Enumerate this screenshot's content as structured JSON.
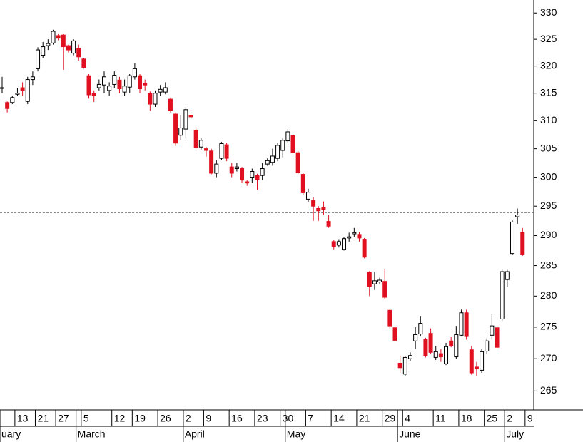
{
  "chart_data": {
    "type": "candlestick",
    "up_color": "#ffffff",
    "down_color": "#e01020",
    "log_scale": true,
    "ylim": [
      262.1,
      332.5
    ],
    "yticks": [
      265,
      270,
      275,
      280,
      285,
      290,
      295,
      300,
      305,
      310,
      315,
      320,
      325,
      330
    ],
    "xlim": [
      -0.42,
      104.2
    ],
    "reference_line": 293.9,
    "xticks": [
      {
        "value": 3,
        "label": "13"
      },
      {
        "value": 7,
        "label": "21"
      },
      {
        "value": 11,
        "label": "27"
      },
      {
        "value": 16,
        "label": "5"
      },
      {
        "value": 22,
        "label": "12"
      },
      {
        "value": 26,
        "label": "19"
      },
      {
        "value": 31,
        "label": "26"
      },
      {
        "value": 36,
        "label": "2"
      },
      {
        "value": 40,
        "label": "9"
      },
      {
        "value": 45,
        "label": "16"
      },
      {
        "value": 50,
        "label": "23"
      },
      {
        "value": 55,
        "label": "30"
      },
      {
        "value": 60,
        "label": "7"
      },
      {
        "value": 65,
        "label": "14"
      },
      {
        "value": 70,
        "label": "21"
      },
      {
        "value": 75,
        "label": "29"
      },
      {
        "value": 79,
        "label": "4"
      },
      {
        "value": 85,
        "label": "11"
      },
      {
        "value": 90,
        "label": "18"
      },
      {
        "value": 95,
        "label": "25"
      },
      {
        "value": 99,
        "label": "2"
      },
      {
        "value": 103,
        "label": "9"
      }
    ],
    "months": [
      {
        "value": 0,
        "label": "uary"
      },
      {
        "value": 15,
        "label": "March"
      },
      {
        "value": 36,
        "label": "April"
      },
      {
        "value": 56,
        "label": "May"
      },
      {
        "value": 78,
        "label": "June"
      },
      {
        "value": 99,
        "label": "July"
      }
    ],
    "open": [
      316,
      313.3,
      313.3,
      314.8,
      316,
      313.5,
      317.5,
      319.5,
      322,
      323.8,
      324.3,
      325.7,
      325.8,
      323.8,
      322.4,
      323.3,
      321.3,
      318.2,
      315,
      316,
      316.5,
      315.5,
      316.6,
      317.4,
      315.2,
      316.1,
      318,
      318.2,
      316.8,
      314.9,
      313,
      315.2,
      315.2,
      313.9,
      311.2,
      307.4,
      308.5,
      311,
      308.3,
      305.3,
      305,
      304.6,
      300.7,
      303.3,
      305.7,
      301.8,
      301.5,
      301.5,
      299.2,
      300,
      300.3,
      300.3,
      302.3,
      302.6,
      303.3,
      304.7,
      306.4,
      307.3,
      304.3,
      300.5,
      296.2,
      296,
      294.6,
      294.8,
      292.4,
      289,
      288.4,
      287.7,
      289.6,
      290.3,
      290.2,
      289.4,
      283.9,
      282,
      282.3,
      282.4,
      277.7,
      274.9,
      269.3,
      267.6,
      270,
      272.8,
      273.9,
      273,
      274,
      270.2,
      270.8,
      269.2,
      272.8,
      270.3,
      273.7,
      277.3,
      271.4,
      268.7,
      268.2,
      271.2,
      273.7,
      274.9,
      276.3,
      282.7,
      287,
      293.2,
      290.5
    ],
    "high": [
      318,
      313.5,
      314.5,
      316,
      317,
      318,
      319,
      323.5,
      324.5,
      325,
      326.8,
      326,
      326,
      324,
      325,
      324,
      321.5,
      318.5,
      315.5,
      317.5,
      319,
      317,
      319,
      318,
      317.5,
      318.5,
      320.5,
      318.5,
      317.5,
      315.3,
      315.5,
      316.5,
      317,
      314.2,
      311.5,
      311,
      312.5,
      312,
      308.6,
      307,
      305.3,
      305,
      303,
      306.2,
      306,
      302.5,
      302.5,
      301.8,
      299.5,
      301.5,
      300.6,
      302.5,
      303.3,
      305,
      306,
      307,
      308.5,
      307.6,
      304.6,
      300.8,
      298,
      296.5,
      295,
      295.8,
      293.5,
      289.3,
      289.4,
      289.8,
      290.5,
      291.3,
      290.6,
      289.6,
      284.1,
      284,
      283,
      284.5,
      278,
      275.2,
      270.5,
      270.5,
      271,
      275,
      276.8,
      273.3,
      274.8,
      272,
      271.5,
      272.5,
      273.4,
      275.2,
      277.8,
      277.8,
      272,
      269.5,
      271.5,
      273.2,
      277.1,
      275.3,
      284.3,
      284.3,
      292.6,
      294.6,
      291.3
    ],
    "low": [
      315,
      311.5,
      313,
      314.5,
      314.5,
      313,
      316.5,
      319,
      321.5,
      323,
      324,
      324.8,
      319.3,
      322.5,
      322,
      321,
      319.5,
      314,
      313.4,
      315.5,
      315,
      314.5,
      316,
      315,
      314.5,
      315,
      317.5,
      315,
      315.5,
      311.8,
      312.5,
      314.5,
      314.8,
      311.5,
      305.5,
      306.6,
      307,
      310.5,
      305,
      304.7,
      303.6,
      300.5,
      300,
      303,
      302.8,
      300,
      301,
      299,
      298.5,
      299,
      297.8,
      299.5,
      302,
      302,
      302.8,
      303.5,
      306,
      304,
      300.5,
      297,
      295.7,
      292.5,
      292.5,
      293.5,
      291.3,
      287.7,
      288,
      287.5,
      289,
      289.8,
      289,
      286.2,
      280,
      281,
      282,
      279.5,
      274.6,
      272.6,
      267.8,
      267.3,
      269.7,
      271.5,
      273.5,
      270.2,
      270.7,
      269.8,
      269.5,
      269,
      271.8,
      270,
      273.5,
      273,
      267.5,
      267.3,
      267.8,
      270.8,
      273,
      271.5,
      276,
      281.5,
      286.8,
      292,
      286.6
    ],
    "close": [
      316,
      312.2,
      314.2,
      315,
      315.5,
      317.5,
      318,
      323,
      323.6,
      324.2,
      326.5,
      325.2,
      323.6,
      323,
      324.7,
      321.7,
      319.7,
      314.7,
      314.6,
      316.6,
      318,
      316.3,
      318.3,
      315.8,
      316.3,
      318.2,
      319.5,
      315.8,
      316.5,
      313,
      315,
      315.7,
      316,
      311.8,
      306,
      308.7,
      312,
      310.7,
      305.2,
      306.5,
      304.7,
      300.7,
      302.3,
      305.9,
      303.3,
      300.7,
      301.8,
      299.5,
      299,
      301,
      299.6,
      301.5,
      302.9,
      303.7,
      305.6,
      306.5,
      308,
      304.3,
      300.8,
      297.3,
      297.4,
      295,
      294.2,
      294.4,
      291.6,
      288.2,
      289,
      289.5,
      289.8,
      290.5,
      289.6,
      286.4,
      281.6,
      282.5,
      282.6,
      279.8,
      275.2,
      272.9,
      268.6,
      270.2,
      270.5,
      273.8,
      275.6,
      270.5,
      271,
      271.1,
      270.3,
      271.9,
      272.1,
      273.8,
      277.3,
      273.5,
      267.8,
      268.4,
      271.1,
      272.8,
      275.2,
      271.8,
      284,
      284,
      292.3,
      293.5,
      286.9
    ]
  }
}
